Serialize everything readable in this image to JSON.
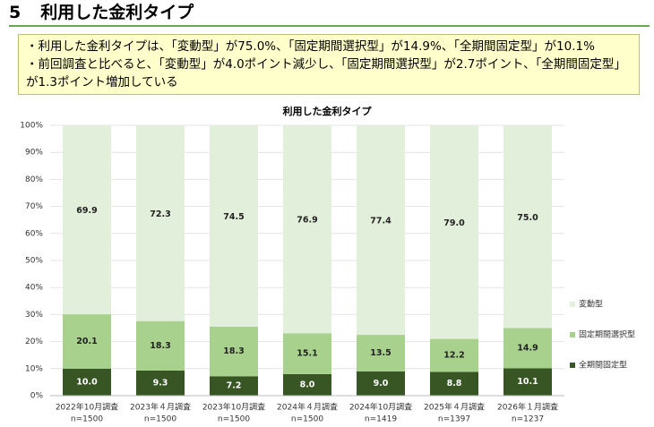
{
  "header": {
    "number": "5",
    "title": "利用した金利タイプ"
  },
  "summary": [
    "・利用した金利タイプは、「変動型」が75.0%、「固定期間選択型」が14.9%、「全期間固定型」が10.1%",
    "・前回調査と比べると、「変動型」が4.0ポイント減少し、「固定期間選択型」が2.7ポイント、「全期間固定型」が1.3ポイント増加している"
  ],
  "chart_data": {
    "type": "stacked_bar",
    "title": "利用した金利タイプ",
    "categories": [
      "2022年10月調査",
      "2023年４月調査",
      "2023年10月調査",
      "2024年４月調査",
      "2024年10月調査",
      "2025年４月調査",
      "2026年１月調査"
    ],
    "sample_sizes": [
      "n=1500",
      "n=1500",
      "n=1500",
      "n=1500",
      "n=1419",
      "n=1397",
      "n=1237"
    ],
    "series": [
      {
        "name": "全期間固定型",
        "color": "#375623",
        "values": [
          10.0,
          9.3,
          7.2,
          8.0,
          9.0,
          8.8,
          10.1
        ],
        "value_labels": [
          "10.0",
          "9.3",
          "7.2",
          "8.0",
          "9.0",
          "8.8",
          "10.1"
        ]
      },
      {
        "name": "固定期間選択型",
        "color": "#a9d18e",
        "values": [
          20.1,
          18.3,
          18.3,
          15.1,
          13.5,
          12.2,
          14.9
        ],
        "value_labels": [
          "20.1",
          "18.3",
          "18.3",
          "15.1",
          "13.5",
          "12.2",
          "14.9"
        ]
      },
      {
        "name": "変動型",
        "color": "#e2efda",
        "values": [
          69.9,
          72.3,
          74.5,
          76.9,
          77.4,
          79.0,
          75.0
        ],
        "value_labels": [
          "69.9",
          "72.3",
          "74.5",
          "76.9",
          "77.4",
          "79.0",
          "75.0"
        ]
      }
    ],
    "ylim": [
      0,
      100
    ],
    "yticks": [
      {
        "value": 0,
        "label": "0%"
      },
      {
        "value": 10,
        "label": "10%"
      },
      {
        "value": 20,
        "label": "20%"
      },
      {
        "value": 30,
        "label": "30%"
      },
      {
        "value": 40,
        "label": "40%"
      },
      {
        "value": 50,
        "label": "50%"
      },
      {
        "value": 60,
        "label": "60%"
      },
      {
        "value": 70,
        "label": "70%"
      },
      {
        "value": 80,
        "label": "80%"
      },
      {
        "value": 90,
        "label": "90%"
      },
      {
        "value": 100,
        "label": "100%"
      }
    ],
    "grid": true,
    "legend": "right"
  }
}
